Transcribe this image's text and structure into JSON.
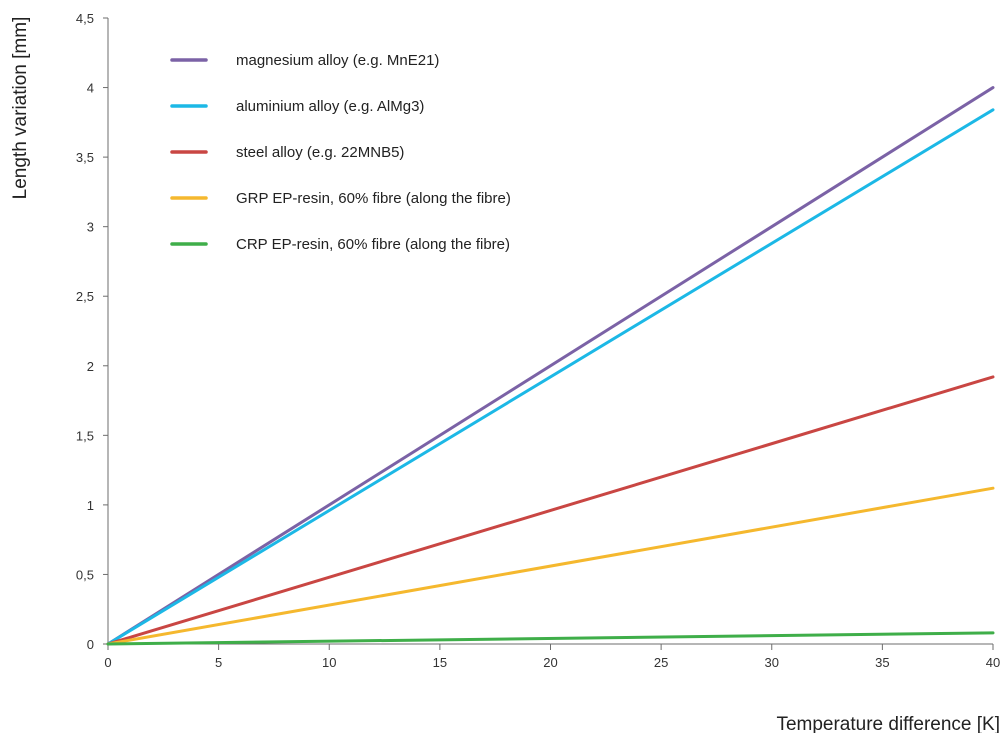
{
  "chart_data": {
    "type": "line",
    "title": "",
    "xlabel": "Temperature difference [K]",
    "ylabel": "Length variation [mm]",
    "xlim": [
      0,
      40
    ],
    "ylim": [
      0,
      4.5
    ],
    "x_ticks": [
      0,
      5,
      10,
      15,
      20,
      25,
      30,
      35,
      40
    ],
    "x_tick_labels": [
      "0",
      "5",
      "10",
      "15",
      "20",
      "25",
      "30",
      "35",
      "40"
    ],
    "y_ticks": [
      0,
      0.5,
      1,
      1.5,
      2,
      2.5,
      3,
      3.5,
      4,
      4.5
    ],
    "y_tick_labels": [
      "0",
      "0,5",
      "1",
      "1,5",
      "2",
      "2,5",
      "3",
      "3,5",
      "4",
      "4,5"
    ],
    "grid": false,
    "legend_position": "top-left",
    "x": [
      0,
      40
    ],
    "series": [
      {
        "name": "magnesium alloy (e.g. MnE21)",
        "color": "#7b62a6",
        "values": [
          0,
          4.0
        ]
      },
      {
        "name": "aluminium alloy (e.g. AlMg3)",
        "color": "#1cb8e6",
        "values": [
          0,
          3.84
        ]
      },
      {
        "name": "steel alloy (e.g. 22MNB5)",
        "color": "#c94643",
        "values": [
          0,
          1.92
        ]
      },
      {
        "name": "GRP EP-resin, 60% fibre (along the fibre)",
        "color": "#f5b82e",
        "values": [
          0,
          1.12
        ]
      },
      {
        "name": "CRP EP-resin, 60% fibre (along the fibre)",
        "color": "#3fae49",
        "values": [
          0,
          0.08
        ]
      }
    ]
  }
}
